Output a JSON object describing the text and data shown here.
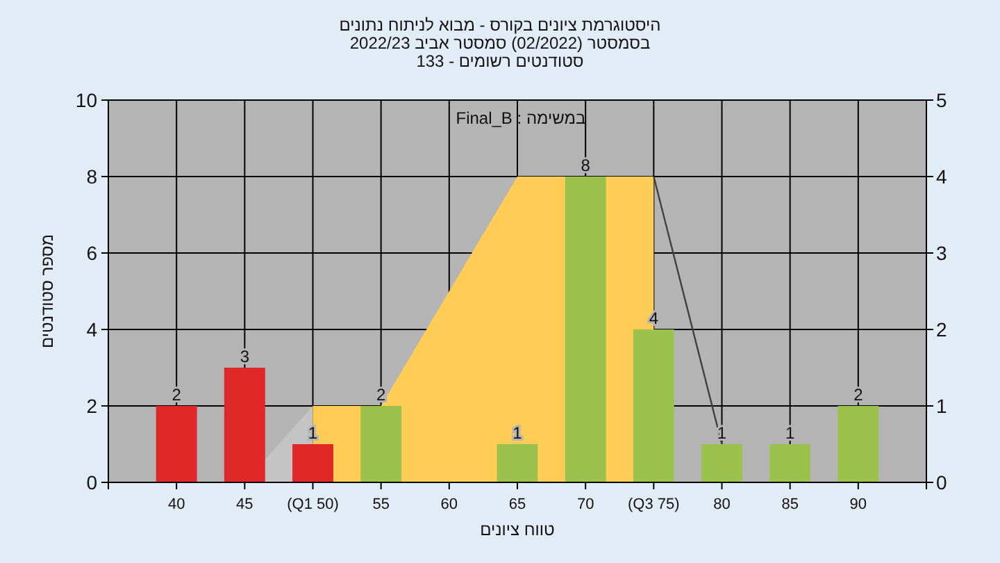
{
  "chart_data": {
    "type": "bar",
    "title": "היסטוגרמת ציונים בקורס - מבוא לניתוח נתונים",
    "subtitle": "בסמסטר  (02/2022)  סמסטר אביב 2022/23",
    "xlabel": "טווח ציונים",
    "ylabel": "מספר סטודנטים",
    "annotations": [
      "סטודנטים רשומים - 133",
      "במשימה : Final_B"
    ],
    "categories": [
      "40",
      "45",
      "(Q1 50)",
      "55",
      "60",
      "65",
      "70",
      "(Q3 75)",
      "80",
      "85",
      "90"
    ],
    "series": [
      {
        "type": "area",
        "color": "#c4c4c4",
        "values": [
          null,
          0,
          2,
          null,
          null,
          null,
          null,
          null,
          null,
          null,
          null
        ]
      },
      {
        "type": "area",
        "color": "#ffcc55",
        "values": [
          null,
          null,
          2,
          2,
          5,
          8,
          8,
          8,
          null,
          null,
          null
        ]
      },
      {
        "type": "line",
        "color": "#404040",
        "values": [
          null,
          null,
          null,
          null,
          null,
          null,
          null,
          8,
          1,
          null,
          null
        ]
      },
      {
        "colors": [
          "#e02828",
          "#e02828",
          "#e02828",
          "#9cc24e",
          "#9cc24e",
          "#9cc24e",
          "#9cc24e",
          "#9cc24e",
          "#9cc24e",
          "#9cc24e",
          "#9cc24e"
        ],
        "values": [
          2,
          3,
          1,
          2,
          0,
          1,
          8,
          4,
          1,
          1,
          2
        ],
        "value_labels": [
          "2",
          "3",
          "1",
          "2",
          null,
          "1",
          "8",
          "4",
          "1",
          "1",
          "2"
        ]
      }
    ],
    "ylim": [
      0,
      10
    ],
    "yticks": [
      0,
      2,
      4,
      6,
      8,
      10
    ],
    "y2lim": [
      0,
      5
    ],
    "y2ticks": [
      0,
      1,
      2,
      3,
      4,
      5
    ],
    "grid": true
  }
}
